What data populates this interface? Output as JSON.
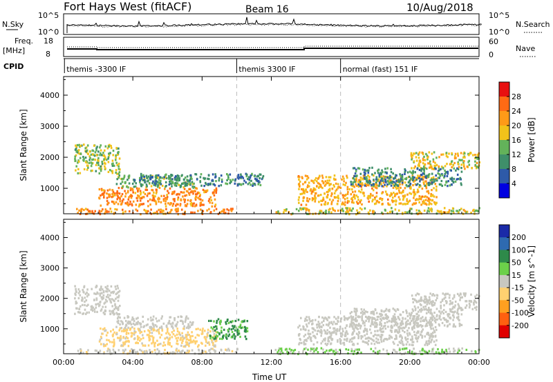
{
  "header": {
    "title": "Fort Hays West (fitACF)",
    "beam": "Beam 16",
    "date": "10/Aug/2018"
  },
  "noise_panel": {
    "left_label": "N.Sky",
    "left_ticks": [
      "10^5",
      "10^0"
    ],
    "right_ticks": [
      "10^5",
      "10^0"
    ],
    "right_label": "N.Search"
  },
  "freq_panel": {
    "left_label_1": "Freq.",
    "left_label_2": "[MHz]",
    "left_ticks": [
      "18",
      "8"
    ],
    "right_ticks": [
      "60",
      "0"
    ],
    "right_label": "Nave"
  },
  "cpid_panel": {
    "label": "CPID",
    "segments": [
      {
        "name": "themis -3300 IF",
        "start_hour": 0.05,
        "end_hour": 10.0
      },
      {
        "name": "themis 3300 IF",
        "start_hour": 10.0,
        "end_hour": 16.0
      },
      {
        "name": "normal (fast) 151 IF",
        "start_hour": 16.0,
        "end_hour": 24.0
      }
    ]
  },
  "chart_data": [
    {
      "type": "heatmap",
      "parameter": "power",
      "ylabel": "Slant Range [km]",
      "ylim": [
        180,
        4600
      ],
      "yticks": [
        1000,
        2000,
        3000,
        4000
      ],
      "xlim": [
        0,
        24
      ],
      "xtick_labels": [
        "00:00",
        "04:00",
        "08:00",
        "12:00",
        "16:00",
        "20:00",
        "00:00"
      ],
      "colorbar": {
        "label": "Power [dB]",
        "ticks": [
          "4",
          "8",
          "12",
          "16",
          "20",
          "24",
          "28"
        ],
        "range": [
          0,
          30
        ],
        "colors": [
          "#0000e0",
          "#2e5aa8",
          "#3f8f6a",
          "#63b25a",
          "#f2c21a",
          "#ff9a18",
          "#ff6a14",
          "#e81010"
        ]
      },
      "echo_regions": [
        {
          "x0": 0.7,
          "x1": 10.0,
          "y0": 200,
          "y1": 380,
          "typical": 22
        },
        {
          "x0": 2.0,
          "x1": 8.8,
          "y0": 450,
          "y1": 1050,
          "typical": 22
        },
        {
          "x0": 3.0,
          "x1": 7.5,
          "y0": 1050,
          "y1": 1450,
          "typical": 12
        },
        {
          "x0": 0.6,
          "x1": 3.2,
          "y0": 1500,
          "y1": 2450,
          "typical": 14
        },
        {
          "x0": 4.0,
          "x1": 11.5,
          "y0": 1100,
          "y1": 1500,
          "typical": 9
        },
        {
          "x0": 13.5,
          "x1": 21.5,
          "y0": 500,
          "y1": 1450,
          "typical": 19
        },
        {
          "x0": 12.2,
          "x1": 24.0,
          "y0": 200,
          "y1": 400,
          "typical": 16
        },
        {
          "x0": 20.0,
          "x1": 24.0,
          "y0": 1650,
          "y1": 2200,
          "typical": 17
        },
        {
          "x0": 16.5,
          "x1": 23.0,
          "y0": 1100,
          "y1": 1700,
          "typical": 9
        }
      ]
    },
    {
      "type": "heatmap",
      "parameter": "velocity",
      "ylabel": "Slant Range [km]",
      "ylim": [
        180,
        4600
      ],
      "yticks": [
        1000,
        2000,
        3000,
        4000
      ],
      "xlim": [
        0,
        24
      ],
      "xtick_labels": [
        "00:00",
        "04:00",
        "08:00",
        "12:00",
        "16:00",
        "20:00",
        "00:00"
      ],
      "xlabel": "Time UT",
      "colorbar": {
        "label": "Velocity [m s^-1]",
        "ticks": [
          "200",
          "100",
          "50",
          "15",
          "-15",
          "-50",
          "-100",
          "-200"
        ],
        "range": [
          -250,
          250
        ],
        "colors": [
          "#1a2aa8",
          "#2e6ab0",
          "#2e8a4a",
          "#6cd04a",
          "#c8c8c0",
          "#ffd070",
          "#ffa020",
          "#ff6010",
          "#e00000"
        ]
      },
      "echo_regions": [
        {
          "x0": 0.7,
          "x1": 10.0,
          "y0": 200,
          "y1": 380,
          "typical": -20
        },
        {
          "x0": 2.0,
          "x1": 8.8,
          "y0": 450,
          "y1": 1050,
          "typical": -45
        },
        {
          "x0": 3.0,
          "x1": 7.5,
          "y0": 1050,
          "y1": 1450,
          "typical": 0
        },
        {
          "x0": 0.6,
          "x1": 3.2,
          "y0": 1500,
          "y1": 2450,
          "typical": 0
        },
        {
          "x0": 8.3,
          "x1": 10.6,
          "y0": 700,
          "y1": 1350,
          "typical": 90
        },
        {
          "x0": 13.5,
          "x1": 21.5,
          "y0": 500,
          "y1": 1450,
          "typical": 0
        },
        {
          "x0": 12.2,
          "x1": 24.0,
          "y0": 200,
          "y1": 400,
          "typical": 30
        },
        {
          "x0": 20.0,
          "x1": 24.0,
          "y0": 1650,
          "y1": 2200,
          "typical": 0
        },
        {
          "x0": 16.5,
          "x1": 23.0,
          "y0": 1100,
          "y1": 1700,
          "typical": 0
        }
      ]
    }
  ]
}
